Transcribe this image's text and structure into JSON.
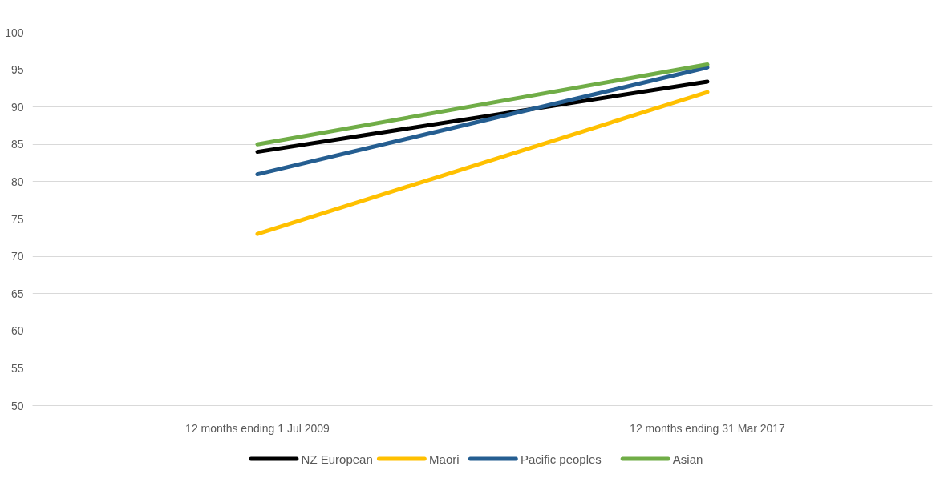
{
  "chart_data": {
    "type": "line",
    "categories": [
      "12 months ending 1 Jul 2009",
      "12 months ending 31 Mar 2017"
    ],
    "series": [
      {
        "name": "NZ European",
        "color": "#000000",
        "values": [
          84,
          93.4
        ]
      },
      {
        "name": "Māori",
        "color": "#ffc000",
        "values": [
          73,
          92
        ]
      },
      {
        "name": "Pacific peoples",
        "color": "#255e91",
        "values": [
          81,
          95.3
        ]
      },
      {
        "name": "Asian",
        "color": "#70ad47",
        "values": [
          85,
          95.7
        ]
      }
    ],
    "ylim": [
      50,
      100
    ],
    "yticks": [
      50,
      55,
      60,
      65,
      70,
      75,
      80,
      85,
      90,
      95,
      100
    ],
    "grid": "y",
    "legend": "bottom",
    "line_style": "solid",
    "marker": "none"
  }
}
